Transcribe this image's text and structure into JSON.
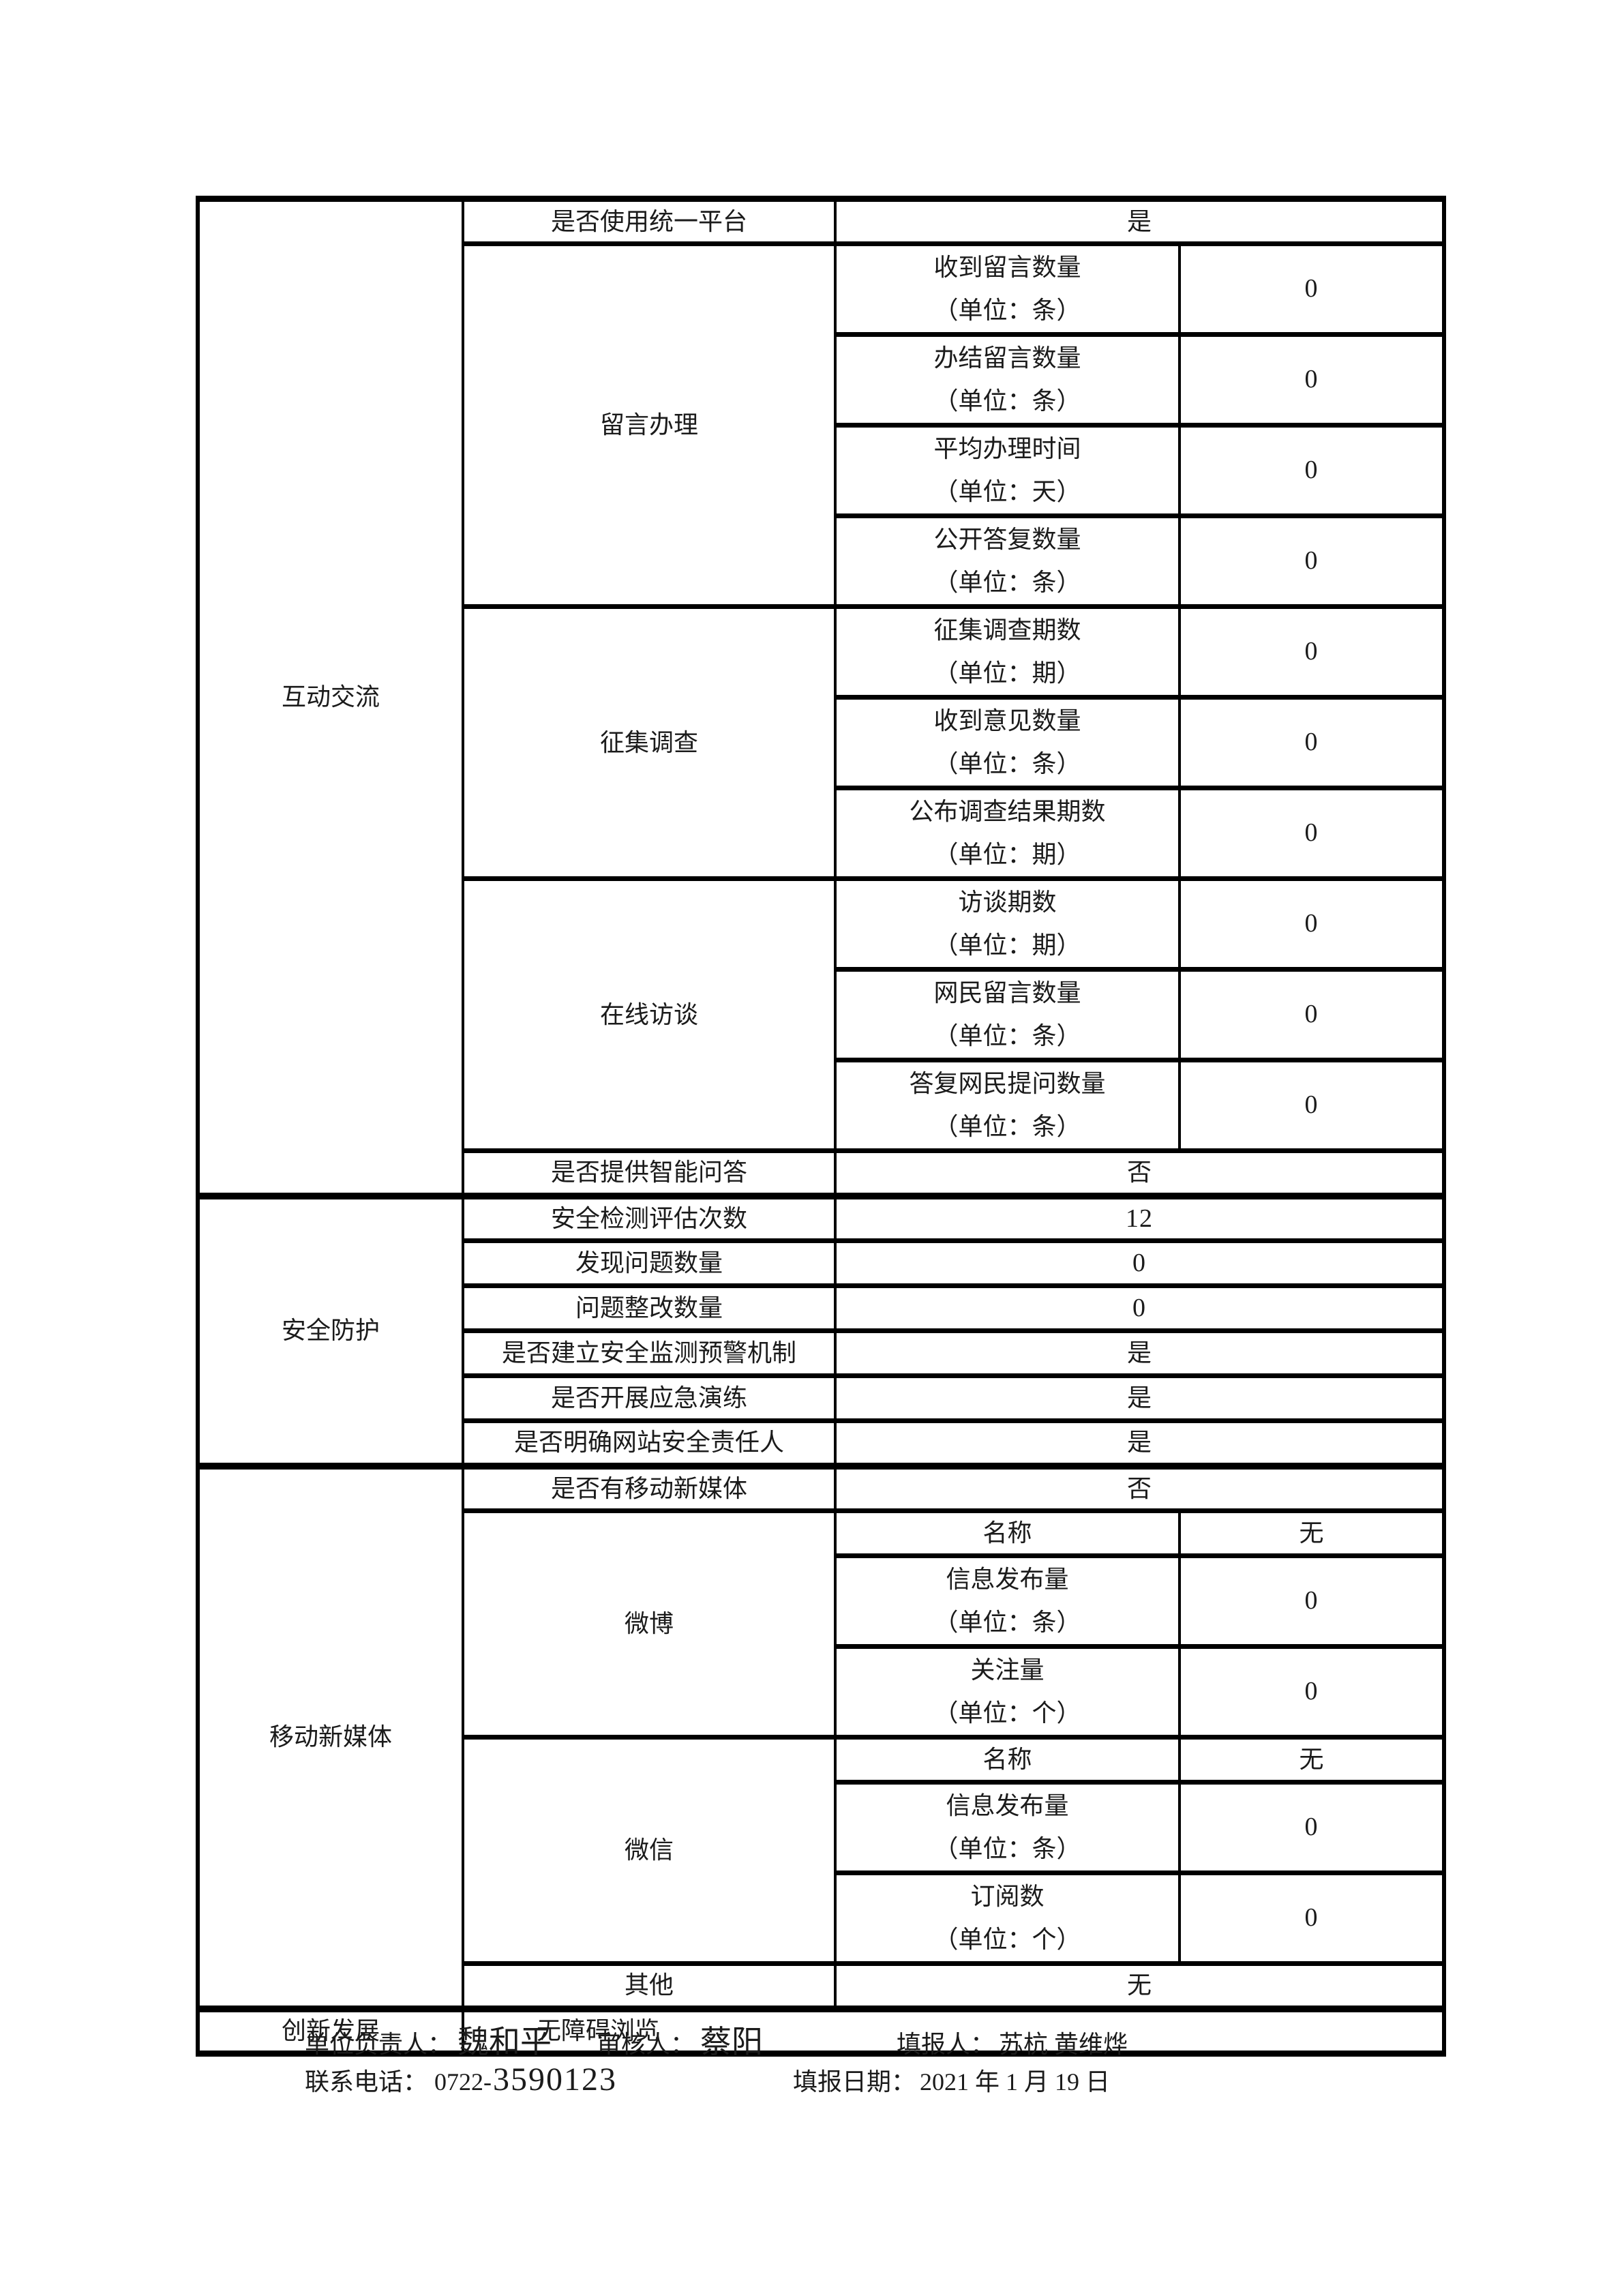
{
  "doc": {
    "colors": {
      "background": "#ffffff",
      "text": "#1b1b1b",
      "border": "#000000"
    },
    "sections": {
      "interaction": {
        "title": "互动交流",
        "unified_platform": {
          "label": "是否使用统一平台",
          "value": "是"
        },
        "message_handling": {
          "title": "留言办理",
          "rows": [
            {
              "label": "收到留言数量",
              "unit": "（单位：条）",
              "value": "0"
            },
            {
              "label": "办结留言数量",
              "unit": "（单位：条）",
              "value": "0"
            },
            {
              "label": "平均办理时间",
              "unit": "（单位：天）",
              "value": "0"
            },
            {
              "label": "公开答复数量",
              "unit": "（单位：条）",
              "value": "0"
            }
          ]
        },
        "survey": {
          "title": "征集调查",
          "rows": [
            {
              "label": "征集调查期数",
              "unit": "（单位：期）",
              "value": "0"
            },
            {
              "label": "收到意见数量",
              "unit": "（单位：条）",
              "value": "0"
            },
            {
              "label": "公布调查结果期数",
              "unit": "（单位：期）",
              "value": "0"
            }
          ]
        },
        "interview": {
          "title": "在线访谈",
          "rows": [
            {
              "label": "访谈期数",
              "unit": "（单位：期）",
              "value": "0"
            },
            {
              "label": "网民留言数量",
              "unit": "（单位：条）",
              "value": "0"
            },
            {
              "label": "答复网民提问数量",
              "unit": "（单位：条）",
              "value": "0"
            }
          ]
        },
        "smart_qa": {
          "label": "是否提供智能问答",
          "value": "否"
        }
      },
      "security": {
        "title": "安全防护",
        "rows": [
          {
            "label": "安全检测评估次数",
            "value": "12"
          },
          {
            "label": "发现问题数量",
            "value": "0"
          },
          {
            "label": "问题整改数量",
            "value": "0"
          },
          {
            "label": "是否建立安全监测预警机制",
            "value": "是"
          },
          {
            "label": "是否开展应急演练",
            "value": "是"
          },
          {
            "label": "是否明确网站安全责任人",
            "value": "是"
          }
        ]
      },
      "mobile_media": {
        "title": "移动新媒体",
        "has_mobile": {
          "label": "是否有移动新媒体",
          "value": "否"
        },
        "weibo": {
          "title": "微博",
          "name": {
            "label": "名称",
            "value": "无"
          },
          "rows": [
            {
              "label": "信息发布量",
              "unit": "（单位：条）",
              "value": "0"
            },
            {
              "label": "关注量",
              "unit": "（单位：个）",
              "value": "0"
            }
          ]
        },
        "wechat": {
          "title": "微信",
          "name": {
            "label": "名称",
            "value": "无"
          },
          "rows": [
            {
              "label": "信息发布量",
              "unit": "（单位：条）",
              "value": "0"
            },
            {
              "label": "订阅数",
              "unit": "（单位：个）",
              "value": "0"
            }
          ]
        },
        "other": {
          "label": "其他",
          "value": "无"
        }
      },
      "innovation": {
        "title": "创新发展",
        "value": "无障碍浏览"
      }
    },
    "footer": {
      "manager_label": "单位负责人：",
      "manager": "魏和平",
      "reviewer_label": "审核人：",
      "reviewer": "蔡阳",
      "filler_label": "填报人：",
      "filler": "苏杭 黄维烨",
      "phone_label": "联系电话：",
      "phone_prefix": "0722-",
      "phone_number": "3590123",
      "date_label": "填报日期：",
      "date": "2021 年 1 月 19 日"
    }
  }
}
